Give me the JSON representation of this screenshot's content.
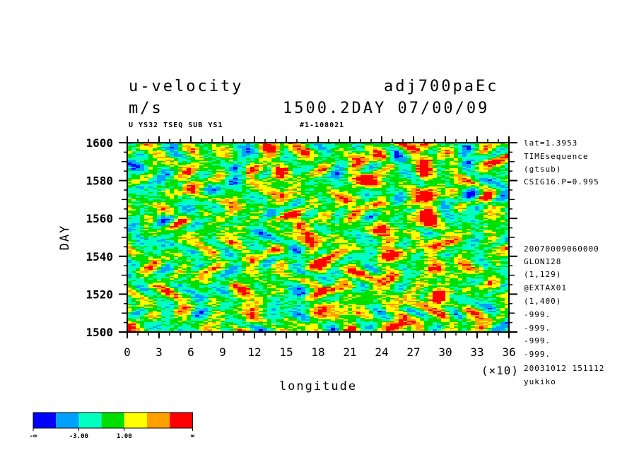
{
  "header": {
    "title_left": "u-velocity",
    "title_right": "adj700paEc",
    "units": "m/s",
    "time_label": "1500.2DAY 07/00/09",
    "subtitle_left": "U YS32 TSEQ SUB YS1",
    "subtitle_right": "#1-108021"
  },
  "side_info": {
    "top": [
      "lat=1.3953",
      "TIMEsequence",
      "(gtsub)",
      "CSIG16.P=0.995"
    ],
    "bottom": [
      "20070009060000",
      "GLON128",
      "(1,129)",
      "@EXTAX01",
      "(1,400)",
      "-999.",
      "-999.",
      "-999.",
      "-999.",
      "20031012 151112",
      "yukiko"
    ]
  },
  "chart_data": {
    "type": "heatmap",
    "xlabel": "longitude",
    "xscale_note": "(×10)",
    "ylabel": "DAY",
    "x_ticks": [
      "0",
      "3",
      "6",
      "9",
      "12",
      "15",
      "18",
      "21",
      "24",
      "27",
      "30",
      "33",
      "36"
    ],
    "y_ticks": [
      "1500",
      "1520",
      "1540",
      "1560",
      "1580",
      "1600"
    ],
    "xlim": [
      0,
      36
    ],
    "ylim": [
      1500,
      1600
    ],
    "colorbar": {
      "colors": [
        "#0000ff",
        "#00a0ff",
        "#00ffc0",
        "#00e000",
        "#ffff00",
        "#ffa000",
        "#ff0000"
      ],
      "labels": [
        "-∞",
        "-3.00",
        "1.00",
        "∞"
      ]
    }
  }
}
